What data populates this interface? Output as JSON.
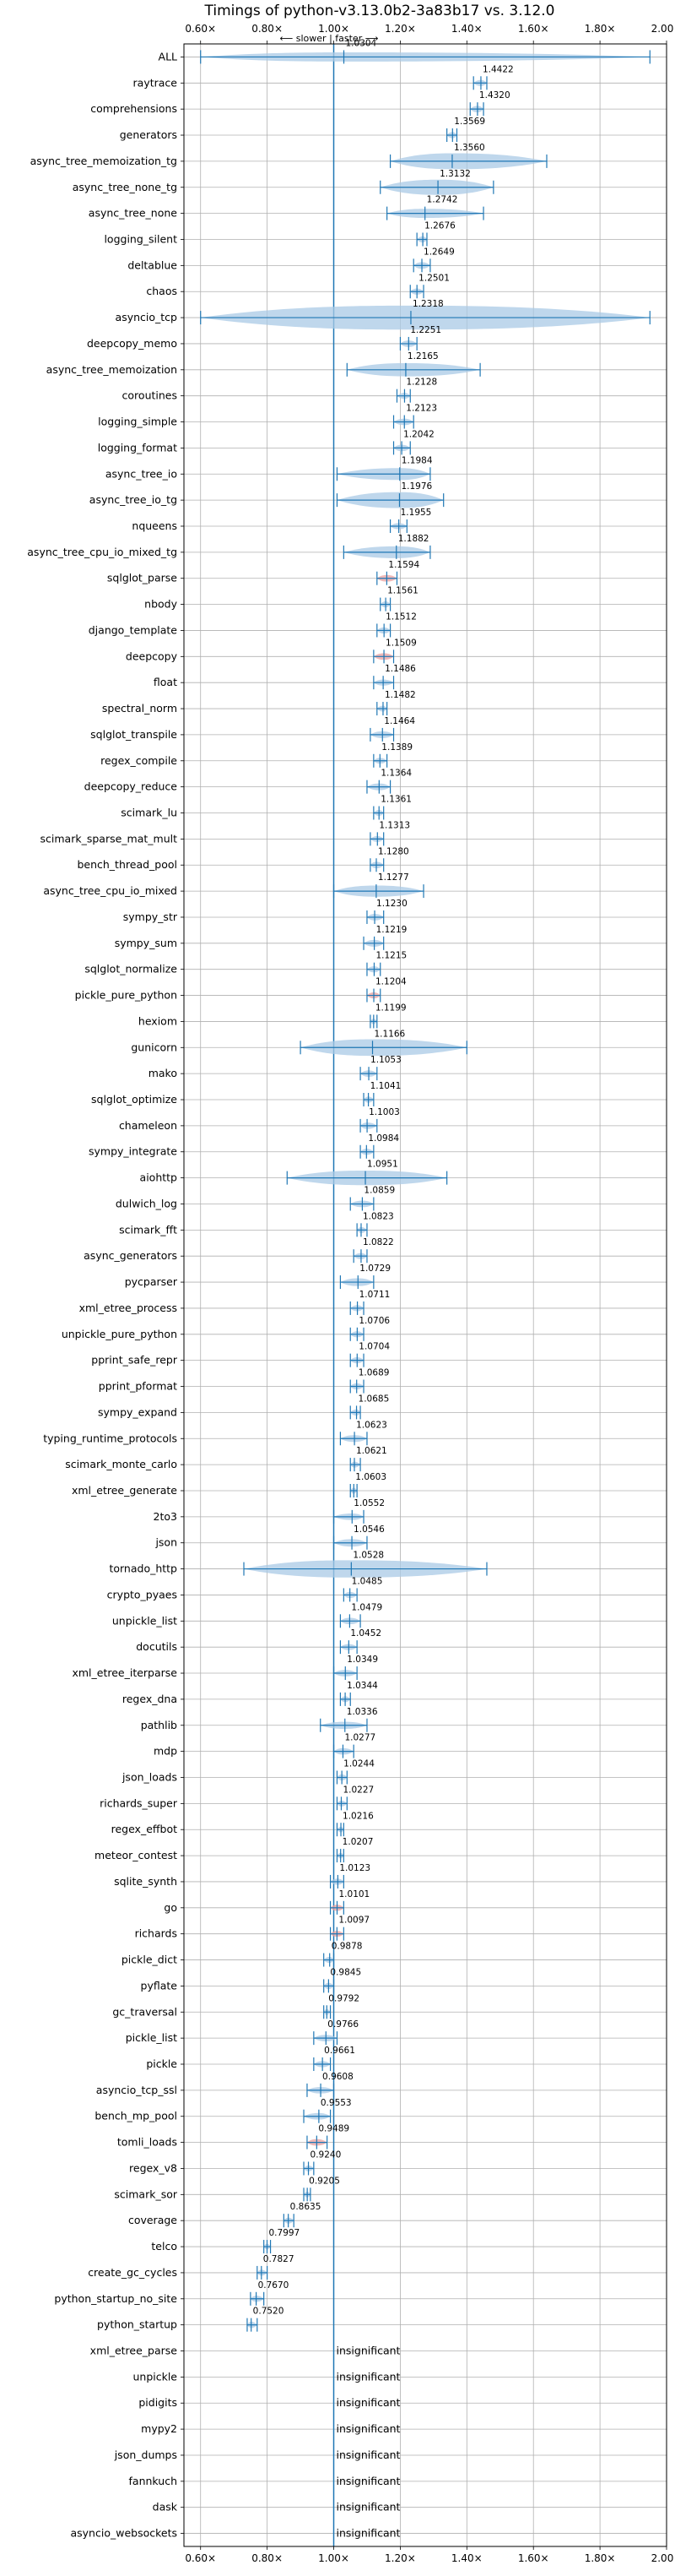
{
  "chart_data": {
    "type": "violin",
    "title": "Timings of python-v3.13.0b2-3a83b17 vs. 3.12.0",
    "direction_label": "⟵ slower | faster ⟶",
    "insignificant_label": "insignificant",
    "xlim": [
      0.55,
      2.0
    ],
    "x_ticks": [
      0.6,
      0.8,
      1.0,
      1.2,
      1.4,
      1.6,
      1.8,
      2.0
    ],
    "x_tick_labels": [
      "0.60×",
      "0.80×",
      "1.00×",
      "1.20×",
      "1.40×",
      "1.60×",
      "1.80×",
      "2.00×"
    ],
    "reference_value": 1.0,
    "grid": true,
    "colors": {
      "violin": "#a9c9e6",
      "line": "#1f77b4",
      "highlight": "#e8a0a0"
    },
    "rows": [
      {
        "name": "ALL",
        "value": 1.0304,
        "label": "1.0304",
        "min": 0.6,
        "max": 1.95,
        "width": 0.06,
        "hl": false
      },
      {
        "name": "raytrace",
        "value": 1.4422,
        "label": "1.4422",
        "min": 1.42,
        "max": 1.46,
        "width": 0.015,
        "hl": false
      },
      {
        "name": "comprehensions",
        "value": 1.432,
        "label": "1.4320",
        "min": 1.41,
        "max": 1.45,
        "width": 0.02,
        "hl": false
      },
      {
        "name": "generators",
        "value": 1.3569,
        "label": "1.3569",
        "min": 1.34,
        "max": 1.37,
        "width": 0.015,
        "hl": false
      },
      {
        "name": "async_tree_memoization_tg",
        "value": 1.356,
        "label": "1.3560",
        "min": 1.17,
        "max": 1.64,
        "width": 0.16,
        "hl": false
      },
      {
        "name": "async_tree_none_tg",
        "value": 1.3132,
        "label": "1.3132",
        "min": 1.14,
        "max": 1.48,
        "width": 0.15,
        "hl": false
      },
      {
        "name": "async_tree_none",
        "value": 1.2742,
        "label": "1.2742",
        "min": 1.16,
        "max": 1.45,
        "width": 0.06,
        "hl": false
      },
      {
        "name": "logging_silent",
        "value": 1.2676,
        "label": "1.2676",
        "min": 1.25,
        "max": 1.28,
        "width": 0.015,
        "hl": false
      },
      {
        "name": "deltablue",
        "value": 1.2649,
        "label": "1.2649",
        "min": 1.24,
        "max": 1.29,
        "width": 0.02,
        "hl": false
      },
      {
        "name": "chaos",
        "value": 1.2501,
        "label": "1.2501",
        "min": 1.23,
        "max": 1.27,
        "width": 0.015,
        "hl": false
      },
      {
        "name": "asyncio_tcp",
        "value": 1.2318,
        "label": "1.2318",
        "min": 0.6,
        "max": 1.95,
        "width": 0.28,
        "hl": false
      },
      {
        "name": "deepcopy_memo",
        "value": 1.2251,
        "label": "1.2251",
        "min": 1.2,
        "max": 1.25,
        "width": 0.02,
        "hl": false
      },
      {
        "name": "async_tree_memoization",
        "value": 1.2165,
        "label": "1.2165",
        "min": 1.04,
        "max": 1.44,
        "width": 0.12,
        "hl": false
      },
      {
        "name": "coroutines",
        "value": 1.2128,
        "label": "1.2128",
        "min": 1.19,
        "max": 1.23,
        "width": 0.015,
        "hl": false
      },
      {
        "name": "logging_simple",
        "value": 1.2123,
        "label": "1.2123",
        "min": 1.18,
        "max": 1.24,
        "width": 0.02,
        "hl": false
      },
      {
        "name": "logging_format",
        "value": 1.2042,
        "label": "1.2042",
        "min": 1.18,
        "max": 1.23,
        "width": 0.02,
        "hl": false
      },
      {
        "name": "async_tree_io",
        "value": 1.1984,
        "label": "1.1984",
        "min": 1.01,
        "max": 1.29,
        "width": 0.1,
        "hl": false
      },
      {
        "name": "async_tree_io_tg",
        "value": 1.1976,
        "label": "1.1976",
        "min": 1.01,
        "max": 1.33,
        "width": 0.16,
        "hl": false
      },
      {
        "name": "nqueens",
        "value": 1.1955,
        "label": "1.1955",
        "min": 1.17,
        "max": 1.22,
        "width": 0.015,
        "hl": false
      },
      {
        "name": "async_tree_cpu_io_mixed_tg",
        "value": 1.1882,
        "label": "1.1882",
        "min": 1.03,
        "max": 1.29,
        "width": 0.1,
        "hl": false
      },
      {
        "name": "sqlglot_parse",
        "value": 1.1594,
        "label": "1.1594",
        "min": 1.13,
        "max": 1.19,
        "width": 0.02,
        "hl": true
      },
      {
        "name": "nbody",
        "value": 1.1561,
        "label": "1.1561",
        "min": 1.14,
        "max": 1.17,
        "width": 0.015,
        "hl": false
      },
      {
        "name": "django_template",
        "value": 1.1512,
        "label": "1.1512",
        "min": 1.13,
        "max": 1.17,
        "width": 0.015,
        "hl": false
      },
      {
        "name": "deepcopy",
        "value": 1.1509,
        "label": "1.1509",
        "min": 1.12,
        "max": 1.18,
        "width": 0.02,
        "hl": true
      },
      {
        "name": "float",
        "value": 1.1486,
        "label": "1.1486",
        "min": 1.12,
        "max": 1.18,
        "width": 0.015,
        "hl": false
      },
      {
        "name": "spectral_norm",
        "value": 1.1482,
        "label": "1.1482",
        "min": 1.13,
        "max": 1.16,
        "width": 0.01,
        "hl": false
      },
      {
        "name": "sqlglot_transpile",
        "value": 1.1464,
        "label": "1.1464",
        "min": 1.11,
        "max": 1.18,
        "width": 0.025,
        "hl": false
      },
      {
        "name": "regex_compile",
        "value": 1.1389,
        "label": "1.1389",
        "min": 1.12,
        "max": 1.16,
        "width": 0.01,
        "hl": false
      },
      {
        "name": "deepcopy_reduce",
        "value": 1.1364,
        "label": "1.1364",
        "min": 1.1,
        "max": 1.17,
        "width": 0.025,
        "hl": false
      },
      {
        "name": "scimark_lu",
        "value": 1.1361,
        "label": "1.1361",
        "min": 1.12,
        "max": 1.15,
        "width": 0.01,
        "hl": false
      },
      {
        "name": "scimark_sparse_mat_mult",
        "value": 1.1313,
        "label": "1.1313",
        "min": 1.11,
        "max": 1.15,
        "width": 0.01,
        "hl": false
      },
      {
        "name": "bench_thread_pool",
        "value": 1.128,
        "label": "1.1280",
        "min": 1.11,
        "max": 1.15,
        "width": 0.02,
        "hl": false
      },
      {
        "name": "async_tree_cpu_io_mixed",
        "value": 1.1277,
        "label": "1.1277",
        "min": 1.0,
        "max": 1.27,
        "width": 0.09,
        "hl": false
      },
      {
        "name": "sympy_str",
        "value": 1.123,
        "label": "1.1230",
        "min": 1.1,
        "max": 1.15,
        "width": 0.02,
        "hl": false
      },
      {
        "name": "sympy_sum",
        "value": 1.1219,
        "label": "1.1219",
        "min": 1.09,
        "max": 1.15,
        "width": 0.025,
        "hl": false
      },
      {
        "name": "sqlglot_normalize",
        "value": 1.1215,
        "label": "1.1215",
        "min": 1.1,
        "max": 1.14,
        "width": 0.015,
        "hl": false
      },
      {
        "name": "pickle_pure_python",
        "value": 1.1204,
        "label": "1.1204",
        "min": 1.1,
        "max": 1.14,
        "width": 0.015,
        "hl": true
      },
      {
        "name": "hexiom",
        "value": 1.1199,
        "label": "1.1199",
        "min": 1.11,
        "max": 1.13,
        "width": 0.005,
        "hl": false
      },
      {
        "name": "gunicorn",
        "value": 1.1166,
        "label": "1.1166",
        "min": 0.9,
        "max": 1.4,
        "width": 0.17,
        "hl": false
      },
      {
        "name": "mako",
        "value": 1.1053,
        "label": "1.1053",
        "min": 1.08,
        "max": 1.13,
        "width": 0.02,
        "hl": false
      },
      {
        "name": "sqlglot_optimize",
        "value": 1.1041,
        "label": "1.1041",
        "min": 1.09,
        "max": 1.12,
        "width": 0.015,
        "hl": false
      },
      {
        "name": "chameleon",
        "value": 1.1003,
        "label": "1.1003",
        "min": 1.08,
        "max": 1.13,
        "width": 0.02,
        "hl": false
      },
      {
        "name": "sympy_integrate",
        "value": 1.0984,
        "label": "1.0984",
        "min": 1.08,
        "max": 1.12,
        "width": 0.015,
        "hl": false
      },
      {
        "name": "aiohttp",
        "value": 1.0951,
        "label": "1.0951",
        "min": 0.86,
        "max": 1.34,
        "width": 0.14,
        "hl": false
      },
      {
        "name": "dulwich_log",
        "value": 1.0859,
        "label": "1.0859",
        "min": 1.05,
        "max": 1.12,
        "width": 0.02,
        "hl": false
      },
      {
        "name": "scimark_fft",
        "value": 1.0823,
        "label": "1.0823",
        "min": 1.07,
        "max": 1.1,
        "width": 0.01,
        "hl": false
      },
      {
        "name": "async_generators",
        "value": 1.0822,
        "label": "1.0822",
        "min": 1.06,
        "max": 1.1,
        "width": 0.015,
        "hl": false
      },
      {
        "name": "pycparser",
        "value": 1.0729,
        "label": "1.0729",
        "min": 1.02,
        "max": 1.12,
        "width": 0.04,
        "hl": false
      },
      {
        "name": "xml_etree_process",
        "value": 1.0711,
        "label": "1.0711",
        "min": 1.05,
        "max": 1.09,
        "width": 0.015,
        "hl": false
      },
      {
        "name": "unpickle_pure_python",
        "value": 1.0706,
        "label": "1.0706",
        "min": 1.05,
        "max": 1.09,
        "width": 0.015,
        "hl": false
      },
      {
        "name": "pprint_safe_repr",
        "value": 1.0704,
        "label": "1.0704",
        "min": 1.05,
        "max": 1.09,
        "width": 0.015,
        "hl": false
      },
      {
        "name": "pprint_pformat",
        "value": 1.0689,
        "label": "1.0689",
        "min": 1.05,
        "max": 1.09,
        "width": 0.015,
        "hl": false
      },
      {
        "name": "sympy_expand",
        "value": 1.0685,
        "label": "1.0685",
        "min": 1.05,
        "max": 1.08,
        "width": 0.015,
        "hl": false
      },
      {
        "name": "typing_runtime_protocols",
        "value": 1.0623,
        "label": "1.0623",
        "min": 1.02,
        "max": 1.1,
        "width": 0.025,
        "hl": false
      },
      {
        "name": "scimark_monte_carlo",
        "value": 1.0621,
        "label": "1.0621",
        "min": 1.05,
        "max": 1.08,
        "width": 0.01,
        "hl": false
      },
      {
        "name": "xml_etree_generate",
        "value": 1.0603,
        "label": "1.0603",
        "min": 1.05,
        "max": 1.07,
        "width": 0.01,
        "hl": false
      },
      {
        "name": "2to3",
        "value": 1.0552,
        "label": "1.0552",
        "min": 1.0,
        "max": 1.09,
        "width": 0.02,
        "hl": false
      },
      {
        "name": "json",
        "value": 1.0546,
        "label": "1.0546",
        "min": 1.0,
        "max": 1.1,
        "width": 0.035,
        "hl": false
      },
      {
        "name": "tornado_http",
        "value": 1.0528,
        "label": "1.0528",
        "min": 0.73,
        "max": 1.46,
        "width": 0.18,
        "hl": false
      },
      {
        "name": "crypto_pyaes",
        "value": 1.0485,
        "label": "1.0485",
        "min": 1.03,
        "max": 1.07,
        "width": 0.015,
        "hl": false
      },
      {
        "name": "unpickle_list",
        "value": 1.0479,
        "label": "1.0479",
        "min": 1.02,
        "max": 1.08,
        "width": 0.02,
        "hl": false
      },
      {
        "name": "docutils",
        "value": 1.0452,
        "label": "1.0452",
        "min": 1.02,
        "max": 1.07,
        "width": 0.015,
        "hl": false
      },
      {
        "name": "xml_etree_iterparse",
        "value": 1.0349,
        "label": "1.0349",
        "min": 1.0,
        "max": 1.07,
        "width": 0.02,
        "hl": false
      },
      {
        "name": "regex_dna",
        "value": 1.0344,
        "label": "1.0344",
        "min": 1.02,
        "max": 1.05,
        "width": 0.01,
        "hl": false
      },
      {
        "name": "pathlib",
        "value": 1.0336,
        "label": "1.0336",
        "min": 0.96,
        "max": 1.1,
        "width": 0.03,
        "hl": false
      },
      {
        "name": "mdp",
        "value": 1.0277,
        "label": "1.0277",
        "min": 1.0,
        "max": 1.06,
        "width": 0.02,
        "hl": false
      },
      {
        "name": "json_loads",
        "value": 1.0244,
        "label": "1.0244",
        "min": 1.01,
        "max": 1.04,
        "width": 0.015,
        "hl": false
      },
      {
        "name": "richards_super",
        "value": 1.0227,
        "label": "1.0227",
        "min": 1.01,
        "max": 1.04,
        "width": 0.01,
        "hl": false
      },
      {
        "name": "regex_effbot",
        "value": 1.0216,
        "label": "1.0216",
        "min": 1.01,
        "max": 1.03,
        "width": 0.005,
        "hl": false
      },
      {
        "name": "meteor_contest",
        "value": 1.0207,
        "label": "1.0207",
        "min": 1.01,
        "max": 1.03,
        "width": 0.005,
        "hl": false
      },
      {
        "name": "sqlite_synth",
        "value": 1.0123,
        "label": "1.0123",
        "min": 0.99,
        "max": 1.03,
        "width": 0.015,
        "hl": false
      },
      {
        "name": "go",
        "value": 1.0101,
        "label": "1.0101",
        "min": 0.99,
        "max": 1.03,
        "width": 0.015,
        "hl": true
      },
      {
        "name": "richards",
        "value": 1.0097,
        "label": "1.0097",
        "min": 0.99,
        "max": 1.03,
        "width": 0.01,
        "hl": true
      },
      {
        "name": "pickle_dict",
        "value": 0.9878,
        "label": "0.9878",
        "min": 0.97,
        "max": 1.0,
        "width": 0.015,
        "hl": false
      },
      {
        "name": "pyflate",
        "value": 0.9845,
        "label": "0.9845",
        "min": 0.97,
        "max": 1.0,
        "width": 0.015,
        "hl": false
      },
      {
        "name": "gc_traversal",
        "value": 0.9792,
        "label": "0.9792",
        "min": 0.97,
        "max": 0.99,
        "width": 0.008,
        "hl": false
      },
      {
        "name": "pickle_list",
        "value": 0.9766,
        "label": "0.9766",
        "min": 0.94,
        "max": 1.01,
        "width": 0.02,
        "hl": false
      },
      {
        "name": "pickle",
        "value": 0.9661,
        "label": "0.9661",
        "min": 0.94,
        "max": 0.99,
        "width": 0.015,
        "hl": false
      },
      {
        "name": "asyncio_tcp_ssl",
        "value": 0.9608,
        "label": "0.9608",
        "min": 0.92,
        "max": 1.0,
        "width": 0.02,
        "hl": false
      },
      {
        "name": "bench_mp_pool",
        "value": 0.9553,
        "label": "0.9553",
        "min": 0.91,
        "max": 0.99,
        "width": 0.02,
        "hl": false
      },
      {
        "name": "tomli_loads",
        "value": 0.9489,
        "label": "0.9489",
        "min": 0.92,
        "max": 0.98,
        "width": 0.02,
        "hl": true
      },
      {
        "name": "regex_v8",
        "value": 0.924,
        "label": "0.9240",
        "min": 0.91,
        "max": 0.94,
        "width": 0.008,
        "hl": false
      },
      {
        "name": "scimark_sor",
        "value": 0.9205,
        "label": "0.9205",
        "min": 0.91,
        "max": 0.93,
        "width": 0.008,
        "hl": false
      },
      {
        "name": "coverage",
        "value": 0.8635,
        "label": "0.8635",
        "min": 0.85,
        "max": 0.88,
        "width": 0.01,
        "hl": false
      },
      {
        "name": "telco",
        "value": 0.7997,
        "label": "0.7997",
        "min": 0.79,
        "max": 0.81,
        "width": 0.008,
        "hl": false
      },
      {
        "name": "create_gc_cycles",
        "value": 0.7827,
        "label": "0.7827",
        "min": 0.77,
        "max": 0.8,
        "width": 0.01,
        "hl": false
      },
      {
        "name": "python_startup_no_site",
        "value": 0.767,
        "label": "0.7670",
        "min": 0.75,
        "max": 0.79,
        "width": 0.015,
        "hl": false
      },
      {
        "name": "python_startup",
        "value": 0.752,
        "label": "0.7520",
        "min": 0.74,
        "max": 0.77,
        "width": 0.015,
        "hl": false
      },
      {
        "name": "xml_etree_parse",
        "insignificant": true
      },
      {
        "name": "unpickle",
        "insignificant": true
      },
      {
        "name": "pidigits",
        "insignificant": true
      },
      {
        "name": "mypy2",
        "insignificant": true
      },
      {
        "name": "json_dumps",
        "insignificant": true
      },
      {
        "name": "fannkuch",
        "insignificant": true
      },
      {
        "name": "dask",
        "insignificant": true
      },
      {
        "name": "asyncio_websockets",
        "insignificant": true
      }
    ]
  }
}
